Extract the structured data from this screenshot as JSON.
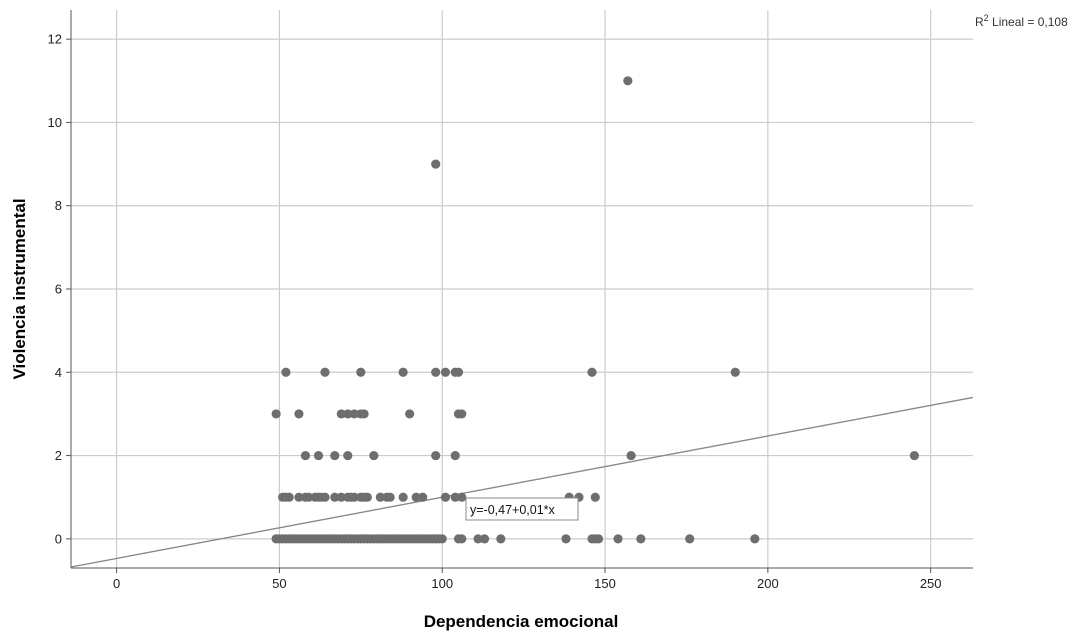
{
  "chart_data": {
    "type": "scatter",
    "title": "",
    "xlabel": "Dependencia emocional",
    "ylabel": "Violencia instrumental",
    "xlim": [
      -14,
      263
    ],
    "ylim": [
      -0.7,
      12.7
    ],
    "xticks": [
      0,
      50,
      100,
      150,
      200,
      250
    ],
    "yticks": [
      0,
      2,
      4,
      6,
      8,
      10,
      12
    ],
    "grid": true,
    "point_color": "#6e6e6e",
    "line_color": "#888888",
    "grid_color": "#cccccc",
    "fit_line": {
      "intercept": -0.47,
      "slope": 0.0147
    },
    "fit_equation_label": "y=-0,47+0,01*x",
    "r2_label_prefix": "R",
    "r2_label_sup": "2",
    "r2_label_rest": " Lineal = 0,108",
    "points": [
      [
        49,
        0
      ],
      [
        50,
        0
      ],
      [
        51,
        0
      ],
      [
        52,
        0
      ],
      [
        53,
        0
      ],
      [
        54,
        0
      ],
      [
        55,
        0
      ],
      [
        56,
        0
      ],
      [
        57,
        0
      ],
      [
        58,
        0
      ],
      [
        59,
        0
      ],
      [
        60,
        0
      ],
      [
        61,
        0
      ],
      [
        62,
        0
      ],
      [
        63,
        0
      ],
      [
        64,
        0
      ],
      [
        65,
        0
      ],
      [
        66,
        0
      ],
      [
        67,
        0
      ],
      [
        68,
        0
      ],
      [
        69,
        0
      ],
      [
        70,
        0
      ],
      [
        71,
        0
      ],
      [
        72,
        0
      ],
      [
        73,
        0
      ],
      [
        74,
        0
      ],
      [
        75,
        0
      ],
      [
        76,
        0
      ],
      [
        77,
        0
      ],
      [
        78,
        0
      ],
      [
        79,
        0
      ],
      [
        80,
        0
      ],
      [
        81,
        0
      ],
      [
        82,
        0
      ],
      [
        83,
        0
      ],
      [
        84,
        0
      ],
      [
        85,
        0
      ],
      [
        86,
        0
      ],
      [
        87,
        0
      ],
      [
        88,
        0
      ],
      [
        89,
        0
      ],
      [
        90,
        0
      ],
      [
        91,
        0
      ],
      [
        92,
        0
      ],
      [
        93,
        0
      ],
      [
        94,
        0
      ],
      [
        95,
        0
      ],
      [
        96,
        0
      ],
      [
        97,
        0
      ],
      [
        98,
        0
      ],
      [
        99,
        0
      ],
      [
        100,
        0
      ],
      [
        105,
        0
      ],
      [
        106,
        0
      ],
      [
        111,
        0
      ],
      [
        113,
        0
      ],
      [
        118,
        0
      ],
      [
        138,
        0
      ],
      [
        146,
        0
      ],
      [
        147,
        0
      ],
      [
        148,
        0
      ],
      [
        154,
        0
      ],
      [
        161,
        0
      ],
      [
        176,
        0
      ],
      [
        196,
        0
      ],
      [
        51,
        1
      ],
      [
        52,
        1
      ],
      [
        53,
        1
      ],
      [
        56,
        1
      ],
      [
        58,
        1
      ],
      [
        59,
        1
      ],
      [
        61,
        1
      ],
      [
        62,
        1
      ],
      [
        63,
        1
      ],
      [
        64,
        1
      ],
      [
        67,
        1
      ],
      [
        69,
        1
      ],
      [
        71,
        1
      ],
      [
        72,
        1
      ],
      [
        73,
        1
      ],
      [
        75,
        1
      ],
      [
        76,
        1
      ],
      [
        77,
        1
      ],
      [
        81,
        1
      ],
      [
        83,
        1
      ],
      [
        84,
        1
      ],
      [
        88,
        1
      ],
      [
        92,
        1
      ],
      [
        94,
        1
      ],
      [
        101,
        1
      ],
      [
        104,
        1
      ],
      [
        106,
        1
      ],
      [
        139,
        1
      ],
      [
        142,
        1
      ],
      [
        147,
        1
      ],
      [
        58,
        2
      ],
      [
        62,
        2
      ],
      [
        67,
        2
      ],
      [
        71,
        2
      ],
      [
        79,
        2
      ],
      [
        98,
        2
      ],
      [
        104,
        2
      ],
      [
        158,
        2
      ],
      [
        245,
        2
      ],
      [
        49,
        3
      ],
      [
        56,
        3
      ],
      [
        69,
        3
      ],
      [
        71,
        3
      ],
      [
        73,
        3
      ],
      [
        75,
        3
      ],
      [
        76,
        3
      ],
      [
        90,
        3
      ],
      [
        105,
        3
      ],
      [
        106,
        3
      ],
      [
        52,
        4
      ],
      [
        64,
        4
      ],
      [
        75,
        4
      ],
      [
        88,
        4
      ],
      [
        98,
        4
      ],
      [
        101,
        4
      ],
      [
        104,
        4
      ],
      [
        105,
        4
      ],
      [
        146,
        4
      ],
      [
        190,
        4
      ],
      [
        98,
        9
      ],
      [
        157,
        11
      ]
    ]
  }
}
